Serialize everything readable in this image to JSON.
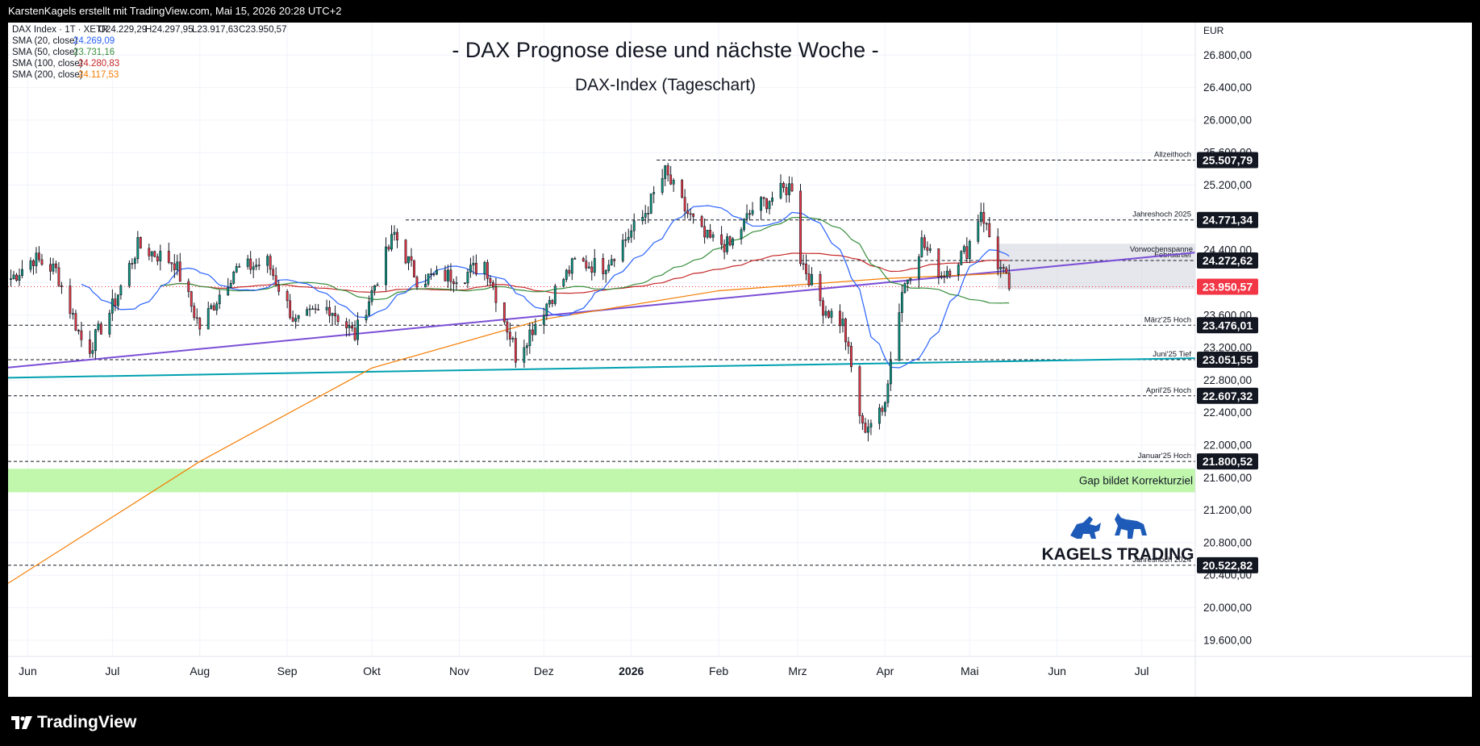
{
  "header": {
    "credit": "KarstenKagels erstellt mit TradingView.com, Mai 15, 2026 20:28 UTC+2"
  },
  "legend": {
    "symbol": "DAX Index · 1T · XETR",
    "ohlc": [
      "O24.229,29",
      "H24.297,95",
      "L23.917,63",
      "C23.950,57"
    ],
    "smas": [
      {
        "label": "SMA (20, close)",
        "value": "24.269,09",
        "color": "#2962ff"
      },
      {
        "label": "SMA (50, close)",
        "value": "23.731,16",
        "color": "#388e3c"
      },
      {
        "label": "SMA (100, close)",
        "value": "24.280,83",
        "color": "#c62828"
      },
      {
        "label": "SMA (200, close)",
        "value": "24.117,53",
        "color": "#f57c00"
      }
    ]
  },
  "footer": {
    "brand": "TradingView"
  },
  "logo": {
    "text": "KAGELS TRADING"
  },
  "chart_data": {
    "type": "candlestick",
    "title": "- DAX Prognose diese und nächste Woche -",
    "subtitle": "DAX-Index (Tageschart)",
    "currency": "EUR",
    "ylim": [
      19400,
      27200
    ],
    "y_ticks": [
      "19.600,00",
      "20.000,00",
      "20.400,00",
      "20.800,00",
      "21.200,00",
      "21.600,00",
      "22.000,00",
      "22.400,00",
      "22.800,00",
      "23.200,00",
      "23.600,00",
      "24.000,00",
      "24.400,00",
      "24.800,00",
      "25.200,00",
      "25.600,00",
      "26.000,00",
      "26.400,00",
      "26.800,00"
    ],
    "y_tick_values": [
      19600,
      20000,
      20400,
      20800,
      21200,
      21600,
      22000,
      22400,
      22800,
      23200,
      23600,
      24000,
      24400,
      24800,
      25200,
      25600,
      26000,
      26400,
      26800
    ],
    "x_ticks": [
      {
        "label": "Jun",
        "date": "2025-06-01"
      },
      {
        "label": "Jul",
        "date": "2025-07-01"
      },
      {
        "label": "Aug",
        "date": "2025-08-01"
      },
      {
        "label": "Sep",
        "date": "2025-09-01"
      },
      {
        "label": "Okt",
        "date": "2025-10-01"
      },
      {
        "label": "Nov",
        "date": "2025-11-01"
      },
      {
        "label": "Dez",
        "date": "2025-12-01"
      },
      {
        "label": "2026",
        "date": "2026-01-01",
        "bold": true
      },
      {
        "label": "Feb",
        "date": "2026-02-01"
      },
      {
        "label": "Mrz",
        "date": "2026-03-01"
      },
      {
        "label": "Apr",
        "date": "2026-04-01"
      },
      {
        "label": "Mai",
        "date": "2026-05-01"
      },
      {
        "label": "Jun",
        "date": "2026-06-01"
      },
      {
        "label": "Jul",
        "date": "2026-07-01"
      }
    ],
    "x_range": [
      "2025-05-25",
      "2026-07-20"
    ],
    "levels": [
      {
        "name": "Allzeithoch",
        "value": 25507.79,
        "label": "25.507,79",
        "x_start": "2026-01-10"
      },
      {
        "name": "Jahreshoch 2025",
        "value": 24771.34,
        "label": "24.771,34",
        "x_start": "2025-10-13"
      },
      {
        "name": "Februartief",
        "value": 24272.62,
        "label": "24.272,62",
        "x_start": "2026-02-06"
      },
      {
        "name": "März'25 Hoch",
        "value": 23476.01,
        "label": "23.476,01",
        "x_start": "2025-05-25"
      },
      {
        "name": "Juni'25 Tief",
        "value": 23051.55,
        "label": "23.051,55",
        "x_start": "2025-05-25"
      },
      {
        "name": "April'25 Hoch",
        "value": 22607.32,
        "label": "22.607,32",
        "x_start": "2025-05-25"
      },
      {
        "name": "Januar'25 Hoch",
        "value": 21800.52,
        "label": "21.800,52",
        "x_start": "2025-05-25"
      },
      {
        "name": "Jahreshoch 2024",
        "value": 20522.82,
        "label": "20.522,82",
        "x_start": "2025-05-25"
      }
    ],
    "current": {
      "value": 23950.57,
      "label": "23.950,57",
      "color": "#f23645"
    },
    "zones": [
      {
        "name": "Vorwochenspanne",
        "from_date": "2026-05-11",
        "to_date": "2026-07-20",
        "low": 23920,
        "high": 24480,
        "color": "#d1d4dc"
      },
      {
        "name": "Gap bildet Korrekturziel",
        "from_date": "2025-05-25",
        "to_date": "2026-07-20",
        "low": 21420,
        "high": 21710,
        "color": "#b9f6a4"
      }
    ],
    "trendlines": [
      {
        "name": "purple",
        "color": "#7b4fd6",
        "points": [
          [
            "2025-05-25",
            22955
          ],
          [
            "2026-07-20",
            24370
          ]
        ]
      },
      {
        "name": "teal",
        "color": "#00a0b0",
        "points": [
          [
            "2025-05-25",
            22830
          ],
          [
            "2026-07-20",
            23070
          ]
        ]
      }
    ],
    "ohlc_anchors": [
      [
        "2025-05-26",
        24050
      ],
      [
        "2025-06-03",
        24300
      ],
      [
        "2025-06-11",
        24150
      ],
      [
        "2025-06-20",
        23300
      ],
      [
        "2025-06-23",
        23200
      ],
      [
        "2025-07-01",
        23700
      ],
      [
        "2025-07-10",
        24450
      ],
      [
        "2025-07-23",
        24250
      ],
      [
        "2025-08-01",
        23450
      ],
      [
        "2025-08-13",
        24150
      ],
      [
        "2025-08-25",
        24250
      ],
      [
        "2025-09-04",
        23500
      ],
      [
        "2025-09-16",
        23700
      ],
      [
        "2025-09-25",
        23350
      ],
      [
        "2025-10-09",
        24600
      ],
      [
        "2025-10-17",
        24050
      ],
      [
        "2025-11-03",
        24100
      ],
      [
        "2025-11-10",
        24250
      ],
      [
        "2025-11-20",
        23250
      ],
      [
        "2025-11-21",
        23100
      ],
      [
        "2025-12-03",
        23800
      ],
      [
        "2025-12-12",
        24250
      ],
      [
        "2025-12-22",
        24200
      ],
      [
        "2026-01-05",
        24800
      ],
      [
        "2026-01-13",
        25350
      ],
      [
        "2026-01-20",
        24900
      ],
      [
        "2026-01-27",
        24550
      ],
      [
        "2026-02-05",
        24450
      ],
      [
        "2026-02-13",
        24900
      ],
      [
        "2026-02-20",
        25050
      ],
      [
        "2026-02-27",
        25200
      ],
      [
        "2026-03-02",
        24300
      ],
      [
        "2026-03-10",
        23700
      ],
      [
        "2026-03-17",
        23500
      ],
      [
        "2026-03-24",
        22200
      ],
      [
        "2026-03-31",
        22400
      ],
      [
        "2026-04-07",
        23900
      ],
      [
        "2026-04-14",
        24500
      ],
      [
        "2026-04-21",
        24100
      ],
      [
        "2026-04-30",
        24400
      ],
      [
        "2026-05-05",
        24900
      ],
      [
        "2026-05-11",
        24230
      ],
      [
        "2026-05-15",
        23950
      ]
    ],
    "sma_colors": {
      "20": "#2962ff",
      "50": "#388e3c",
      "100": "#c62828",
      "200": "#f57c00"
    },
    "sma200_approx": [
      [
        "2025-05-25",
        20300
      ],
      [
        "2025-08-01",
        21800
      ],
      [
        "2025-10-01",
        22950
      ],
      [
        "2025-12-01",
        23550
      ],
      [
        "2026-02-01",
        23900
      ],
      [
        "2026-04-01",
        24050
      ],
      [
        "2026-05-15",
        24117.53
      ]
    ]
  }
}
